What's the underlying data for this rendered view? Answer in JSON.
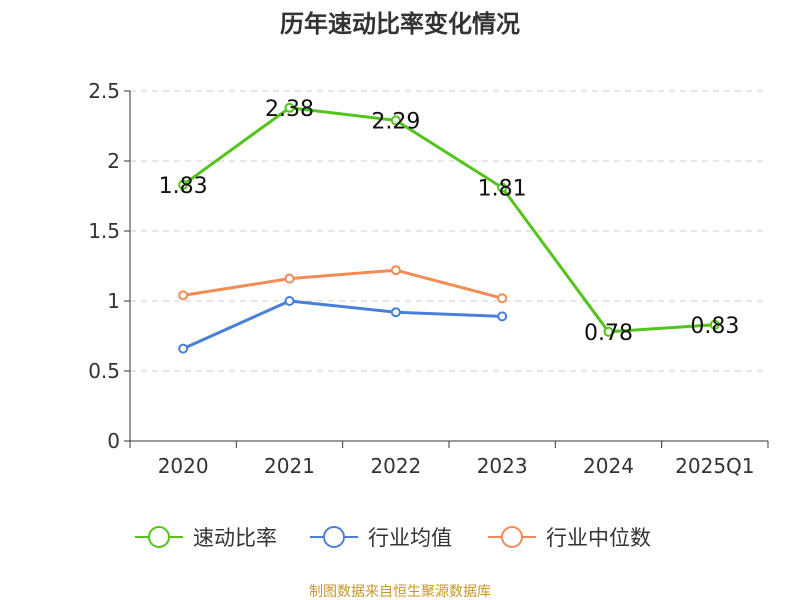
{
  "chart_data": {
    "type": "line",
    "title": "历年速动比率变化情况",
    "categories": [
      "2020",
      "2021",
      "2022",
      "2023",
      "2024",
      "2025Q1"
    ],
    "ylim": [
      0,
      2.5
    ],
    "yticks": [
      0,
      0.5,
      1,
      1.5,
      2,
      2.5
    ],
    "ytick_labels": [
      "0",
      "0.5",
      "1",
      "1.5",
      "2",
      "2.5"
    ],
    "grid": true,
    "legend_position": "bottom",
    "series": [
      {
        "name": "速动比率",
        "color": "#52c41a",
        "values": [
          1.83,
          2.38,
          2.29,
          1.81,
          0.78,
          0.83
        ],
        "labels": [
          "1.83",
          "2.38",
          "2.29",
          "1.81",
          "0.78",
          "0.83"
        ],
        "show_labels": true
      },
      {
        "name": "行业均值",
        "color": "#4a7fd9",
        "values": [
          0.66,
          1.0,
          0.92,
          0.89,
          null,
          null
        ],
        "show_labels": false
      },
      {
        "name": "行业中位数",
        "color": "#f28b54",
        "values": [
          1.04,
          1.16,
          1.22,
          1.02,
          null,
          null
        ],
        "show_labels": false
      }
    ],
    "source": "制图数据来自恒生聚源数据库"
  }
}
